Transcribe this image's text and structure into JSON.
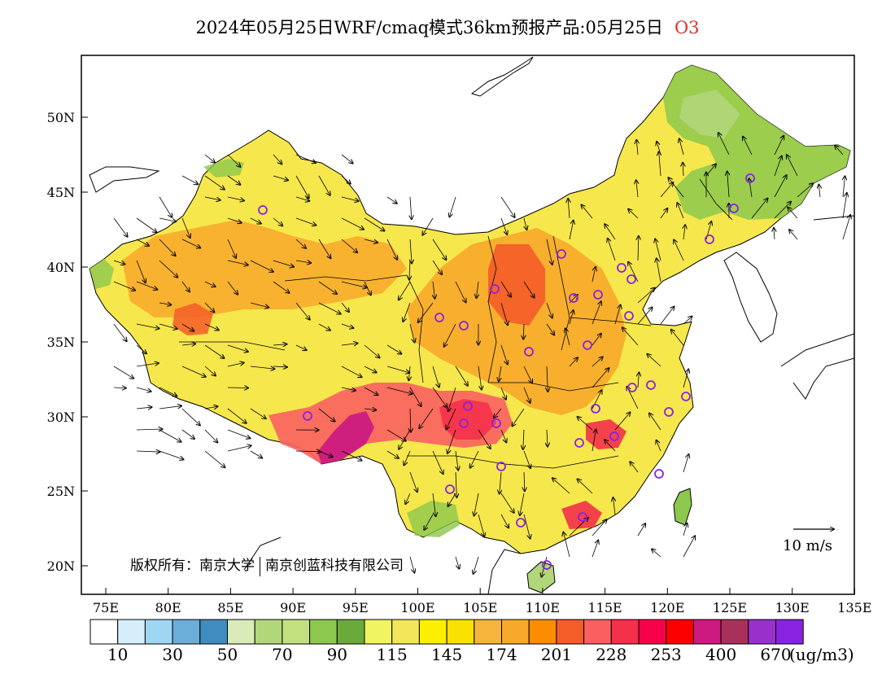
{
  "title": {
    "main": "2024年05月25日WRF/cmaq模式36km预报产品:05月25日",
    "species": "O3",
    "species_color": "#e0302a"
  },
  "axes": {
    "lat_labels": [
      "50N",
      "45N",
      "40N",
      "35N",
      "30N",
      "25N",
      "20N"
    ],
    "lon_labels": [
      "75E",
      "80E",
      "85E",
      "90E",
      "95E",
      "100E",
      "105E",
      "110E",
      "115E",
      "120E",
      "125E",
      "130E",
      "135E"
    ]
  },
  "copyright": {
    "part1": "版权所有：南京大学",
    "part2": "南京创蓝科技有限公司"
  },
  "wind_reference": {
    "label": "10 m/s"
  },
  "colorbar": {
    "unit": "(ug/m3)",
    "labels": [
      "10",
      "30",
      "50",
      "70",
      "90",
      "115",
      "145",
      "174",
      "201",
      "228",
      "253",
      "400",
      "670"
    ],
    "colors": [
      "#ffffff",
      "#d6eefa",
      "#9fd6f2",
      "#6aaed9",
      "#3f8cc0",
      "#d9ebb8",
      "#b2d67a",
      "#c2e080",
      "#8cc84e",
      "#6aaa3a",
      "#f0f460",
      "#f2e65a",
      "#fcf000",
      "#fae200",
      "#f6b43c",
      "#f8a82a",
      "#fc8c00",
      "#f45c28",
      "#fa6060",
      "#f4304a",
      "#f8004a",
      "#fc0000",
      "#cc1a80",
      "#a8305a",
      "#9a30cc",
      "#8a22e2"
    ]
  },
  "map": {
    "grid_lon_range": [
      73,
      135
    ],
    "grid_lat_range": [
      18,
      54
    ]
  }
}
